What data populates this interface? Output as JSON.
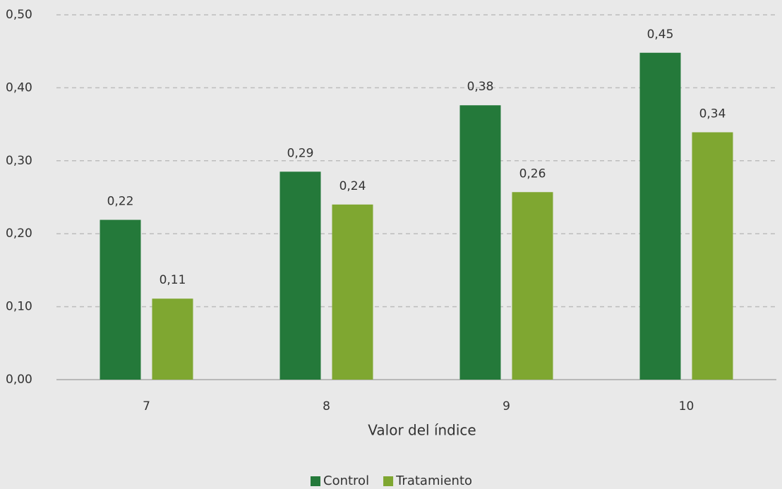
{
  "chart_data": {
    "type": "bar",
    "x_label": "Valor del índice",
    "categories": [
      "7",
      "8",
      "9",
      "10"
    ],
    "series": [
      {
        "name": "Control",
        "color": "#24793a",
        "values": [
          0.219,
          0.285,
          0.376,
          0.448
        ],
        "value_labels": [
          "0,22",
          "0,29",
          "0,38",
          "0,45"
        ]
      },
      {
        "name": "Tratamiento",
        "color": "#7fa731",
        "values": [
          0.111,
          0.24,
          0.257,
          0.339
        ],
        "value_labels": [
          "0,11",
          "0,24",
          "0,26",
          "0,34"
        ]
      }
    ],
    "ylim": [
      0,
      0.5
    ],
    "yticks": [
      {
        "value": 0,
        "label": "0,00"
      },
      {
        "value": 0.1,
        "label": "0,10"
      },
      {
        "value": 0.2,
        "label": "0,20"
      },
      {
        "value": 0.3,
        "label": "0,30"
      },
      {
        "value": 0.4,
        "label": "0,40"
      },
      {
        "value": 0.5,
        "label": "0,50"
      }
    ],
    "grid": true,
    "legend": "bottom"
  }
}
